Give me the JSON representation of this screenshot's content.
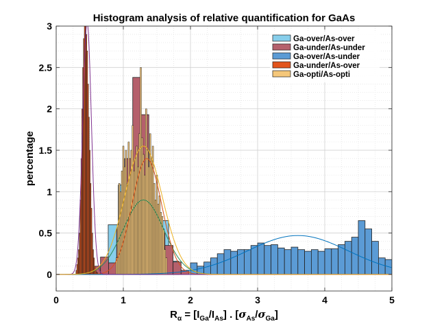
{
  "chart_data": {
    "type": "bar",
    "title": "Histogram analysis of relative quantification for GaAs",
    "ylabel": "percentage",
    "xlabel": "Rα = [I_Ga/I_As] . [σ_As/σ_Ga]",
    "xlim": [
      0,
      5
    ],
    "ylim": [
      -0.2,
      3
    ],
    "xticks": [
      "0",
      "1",
      "2",
      "3",
      "4",
      "5"
    ],
    "yticks": [
      "0",
      "0.5",
      "1",
      "1.5",
      "2",
      "2.5",
      "3"
    ],
    "grid": true,
    "legend_position": "top-right",
    "series": [
      {
        "name": "Ga-over/As-over",
        "color": "#87ceeb",
        "bin_width": 0.15,
        "x": [
          0.4,
          0.55,
          0.7,
          0.85,
          1.0,
          1.15,
          1.3,
          1.45,
          1.6,
          1.75
        ],
        "values": [
          0.02,
          0.05,
          0.1,
          0.6,
          1.08,
          0.9,
          0.95,
          0.72,
          0.65,
          0.16
        ],
        "fit": {
          "mu": 1.3,
          "sigma": 0.3,
          "amp": 0.9
        }
      },
      {
        "name": "Ga-under/As-under",
        "color": "#b5606c",
        "bin_width": 0.12,
        "x": [
          0.6,
          0.72,
          0.84,
          0.96,
          1.08,
          1.2,
          1.32,
          1.44,
          1.56,
          1.68,
          1.8,
          1.92
        ],
        "values": [
          0.1,
          0.21,
          0.14,
          0.55,
          1.4,
          2.38,
          1.93,
          0.88,
          0.5,
          0.35,
          0.15,
          0.05
        ],
        "fit": {
          "mu": 1.35,
          "sigma": 0.22,
          "amp": 1.4
        }
      },
      {
        "name": "Ga-over/As-under",
        "color": "#5b9bd5",
        "bin_width": 0.1,
        "x": [
          2.05,
          2.15,
          2.25,
          2.35,
          2.45,
          2.55,
          2.65,
          2.75,
          2.85,
          2.95,
          3.05,
          3.15,
          3.25,
          3.35,
          3.45,
          3.55,
          3.65,
          3.75,
          3.85,
          3.95,
          4.05,
          4.15,
          4.25,
          4.35,
          4.45,
          4.55,
          4.65,
          4.75,
          4.85,
          4.95
        ],
        "values": [
          0.14,
          0.1,
          0.15,
          0.2,
          0.25,
          0.3,
          0.28,
          0.3,
          0.3,
          0.35,
          0.38,
          0.35,
          0.36,
          0.32,
          0.3,
          0.33,
          0.3,
          0.28,
          0.3,
          0.28,
          0.31,
          0.31,
          0.36,
          0.4,
          0.45,
          0.65,
          0.55,
          0.4,
          0.2,
          0.18
        ],
        "fit": {
          "mu": 3.6,
          "sigma": 0.75,
          "amp": 0.47
        }
      },
      {
        "name": "Ga-under/As-over",
        "color": "#e2541c",
        "bin_width": 0.0125,
        "x": [
          0.3,
          0.3125,
          0.325,
          0.3375,
          0.35,
          0.3625,
          0.375,
          0.3875,
          0.4,
          0.4125,
          0.425,
          0.4375,
          0.45,
          0.4625,
          0.475,
          0.4875,
          0.5,
          0.5125,
          0.525,
          0.5375,
          0.55,
          0.5625,
          0.575,
          0.5875,
          0.6,
          0.6125
        ],
        "values": [
          0.05,
          0.12,
          0.2,
          0.3,
          0.5,
          0.9,
          1.4,
          2.0,
          2.5,
          2.85,
          3.0,
          3.0,
          2.9,
          2.7,
          2.3,
          1.9,
          1.5,
          1.1,
          0.8,
          0.5,
          0.3,
          0.2,
          0.1,
          0.05,
          0.03,
          0.02
        ],
        "fit": {
          "mu": 0.46,
          "sigma": 0.065,
          "amp": 3.05
        }
      },
      {
        "name": "Ga-opti/As-opti",
        "color": "#f5c77a",
        "bin_width": 0.02,
        "x": [
          0.9,
          0.92,
          0.94,
          0.96,
          0.98,
          1.0,
          1.02,
          1.04,
          1.06,
          1.08,
          1.1,
          1.12,
          1.14,
          1.16,
          1.18,
          1.2,
          1.22,
          1.24,
          1.26,
          1.28,
          1.3,
          1.32,
          1.34,
          1.36,
          1.38,
          1.4,
          1.42,
          1.44,
          1.46,
          1.48,
          1.5,
          1.52,
          1.54,
          1.56,
          1.58,
          1.6,
          1.62,
          1.64
        ],
        "values": [
          0.2,
          0.6,
          1.1,
          1.0,
          1.25,
          1.55,
          1.3,
          1.5,
          1.1,
          1.6,
          1.2,
          1.5,
          1.8,
          1.25,
          1.4,
          1.55,
          1.3,
          1.7,
          2.5,
          1.65,
          1.45,
          1.2,
          2.0,
          1.5,
          1.3,
          1.7,
          1.4,
          1.55,
          1.1,
          0.9,
          1.2,
          0.85,
          0.95,
          0.75,
          0.7,
          0.55,
          0.3,
          0.2
        ],
        "fit": {
          "mu": 1.3,
          "sigma": 0.28,
          "amp": 1.55
        }
      }
    ]
  }
}
